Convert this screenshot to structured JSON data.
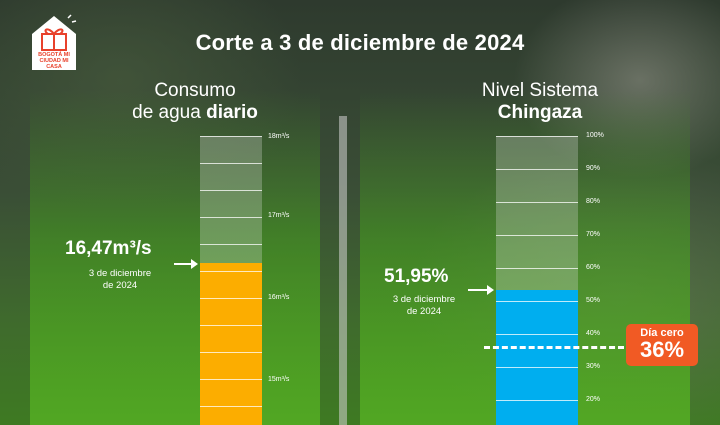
{
  "header": {
    "title": "Corte a 3 de diciembre de 2024"
  },
  "logo": {
    "text": "BOGOTÁ MI CIUDAD MI CASA",
    "icon": "gift-house-logo"
  },
  "left_panel": {
    "title_line1": "Consumo",
    "title_line2_regular": "de agua ",
    "title_line2_bold": "diario",
    "value": "16,47m³/s",
    "date_line1": "3 de diciembre",
    "date_line2": "de 2024",
    "fill_color": "#fcad00",
    "tick_labels": [
      "18m³/s",
      "17m³/s",
      "16m³/s",
      "15m³/s"
    ]
  },
  "right_panel": {
    "title_line1": "Nivel Sistema",
    "title_line2_bold": "Chingaza",
    "value": "51,95%",
    "date_line1": "3 de diciembre",
    "date_line2": "de 2024",
    "fill_color": "#00aeef",
    "tick_labels": [
      "100%",
      "90%",
      "80%",
      "70%",
      "60%",
      "50%",
      "40%",
      "30%",
      "20%"
    ],
    "threshold": {
      "label": "Día cero",
      "value": "36%",
      "color": "#f15a24"
    }
  }
}
